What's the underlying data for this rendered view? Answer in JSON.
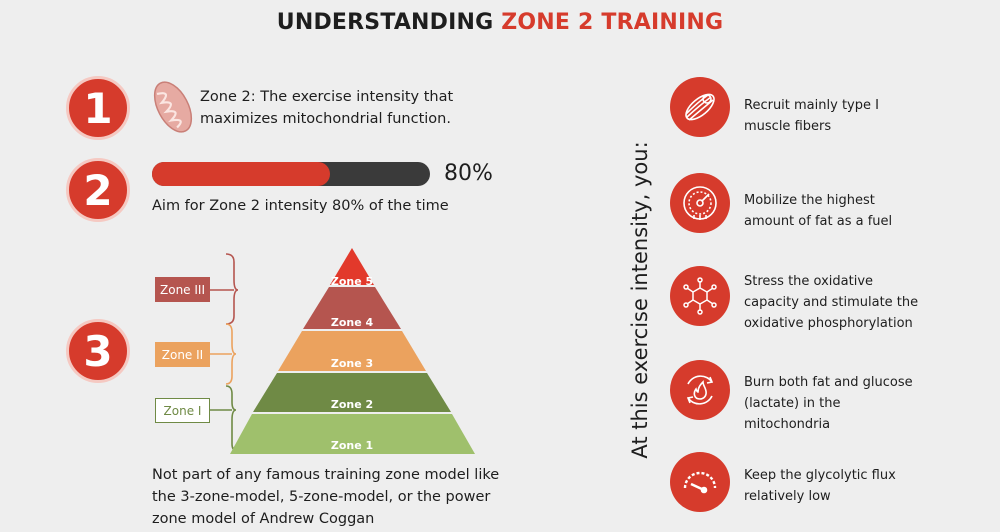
{
  "title": {
    "main": "UNDERSTANDING ",
    "accent": "ZONE 2 TRAINING"
  },
  "steps": [
    {
      "number": "1",
      "text": [
        "Zone 2: The exercise intensity that",
        "maximizes mitochondrial function."
      ],
      "icon": "mitochondria-icon"
    },
    {
      "number": "2",
      "progress": 0.8,
      "progress_label": "80%",
      "text": "Aim for Zone 2 intensity 80% of the time"
    },
    {
      "number": "3",
      "text": [
        "Not part of any famous training zone model like",
        "the 3-zone-model, 5-zone-model, or the power",
        "zone model of Andrew Coggan"
      ]
    }
  ],
  "pyramid": {
    "levels": [
      {
        "label": "Zone 5",
        "color": "#e2392b"
      },
      {
        "label": "Zone 4",
        "color": "#b5554f"
      },
      {
        "label": "Zone 3",
        "color": "#eba25e"
      },
      {
        "label": "Zone 2",
        "color": "#6f8a45"
      },
      {
        "label": "Zone 1",
        "color": "#9fc06c"
      }
    ],
    "groups": [
      {
        "label": "Zone III",
        "color": "#b5554f"
      },
      {
        "label": "Zone II",
        "color": "#eba25e"
      },
      {
        "label": "Zone I",
        "color": "#6f8a45"
      }
    ]
  },
  "side_heading": "At this exercise intensity, you:",
  "benefits": [
    {
      "icon": "muscle-fiber-icon",
      "text": [
        "Recruit mainly type I",
        "muscle fibers"
      ]
    },
    {
      "icon": "gauge-icon",
      "text": [
        "Mobilize the highest",
        "amount of fat as a fuel"
      ]
    },
    {
      "icon": "molecule-icon",
      "text": [
        "Stress the oxidative",
        "capacity and stimulate the",
        "oxidative phosphorylation"
      ]
    },
    {
      "icon": "flame-cycle-icon",
      "text": [
        "Burn both fat and glucose",
        "(lactate) in the",
        "mitochondria"
      ]
    },
    {
      "icon": "speedometer-low-icon",
      "text": [
        "Keep the glycolytic flux",
        "relatively low"
      ]
    }
  ],
  "colors": {
    "accent": "#d63b2c",
    "dark": "#3a3a3a",
    "background": "#eeeeee"
  }
}
